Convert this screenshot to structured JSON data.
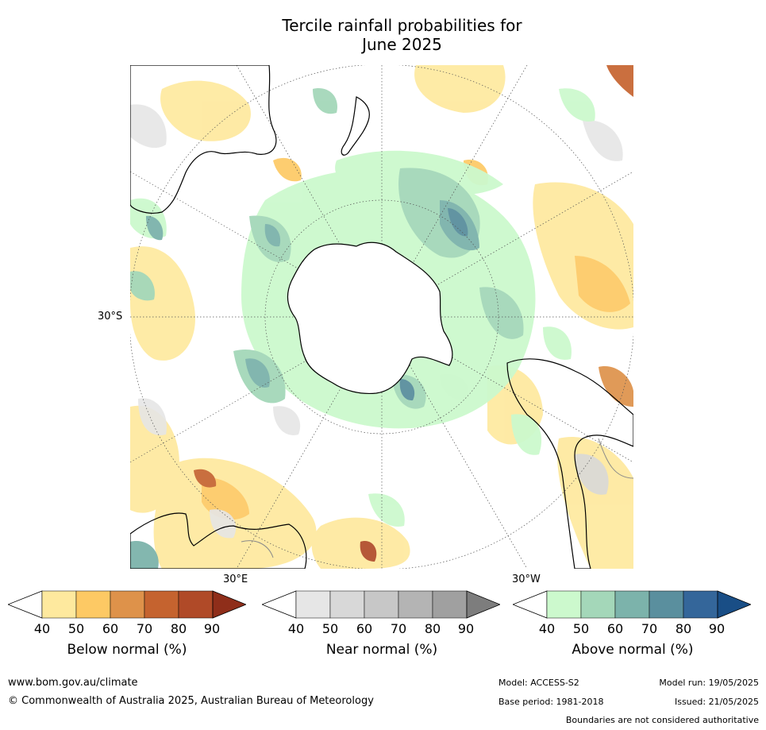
{
  "title_line1": "Tercile rainfall probabilities for",
  "title_line2": "June 2025",
  "lat_label": "30°S",
  "lon_label_east": "30°E",
  "lon_label_west": "30°W",
  "colorbars": [
    {
      "label": "Below normal (%)",
      "ticks": [
        "40",
        "50",
        "60",
        "70",
        "80",
        "90"
      ],
      "colors": [
        "#ffffff",
        "#fee99e",
        "#fdc964",
        "#de924a",
        "#c5632f",
        "#b04a28",
        "#8f2e1a"
      ]
    },
    {
      "label": "Near normal (%)",
      "ticks": [
        "40",
        "50",
        "60",
        "70",
        "80",
        "90"
      ],
      "colors": [
        "#ffffff",
        "#e6e6e6",
        "#d8d8d8",
        "#c7c7c7",
        "#b4b4b4",
        "#a0a0a0",
        "#7d7d7d"
      ]
    },
    {
      "label": "Above normal (%)",
      "ticks": [
        "40",
        "50",
        "60",
        "70",
        "80",
        "90"
      ],
      "colors": [
        "#ffffff",
        "#ccf9cd",
        "#a4d7b9",
        "#7cb3ab",
        "#5a8f9e",
        "#34669a",
        "#194e86"
      ]
    }
  ],
  "footer": {
    "url": "www.bom.gov.au/climate",
    "copyright": "© Commonwealth of Australia 2025, Australian Bureau of Meteorology",
    "model": "Model: ACCESS-S2",
    "base_period": "Base period: 1981-2018",
    "model_run": "Model run: 19/05/2025",
    "issued": "Issued: 21/05/2025",
    "boundaries": "Boundaries are not considered authoritative"
  },
  "colors": {
    "land_outline": "#000000",
    "graticule": "#555555",
    "border": "#8a8a8a"
  }
}
